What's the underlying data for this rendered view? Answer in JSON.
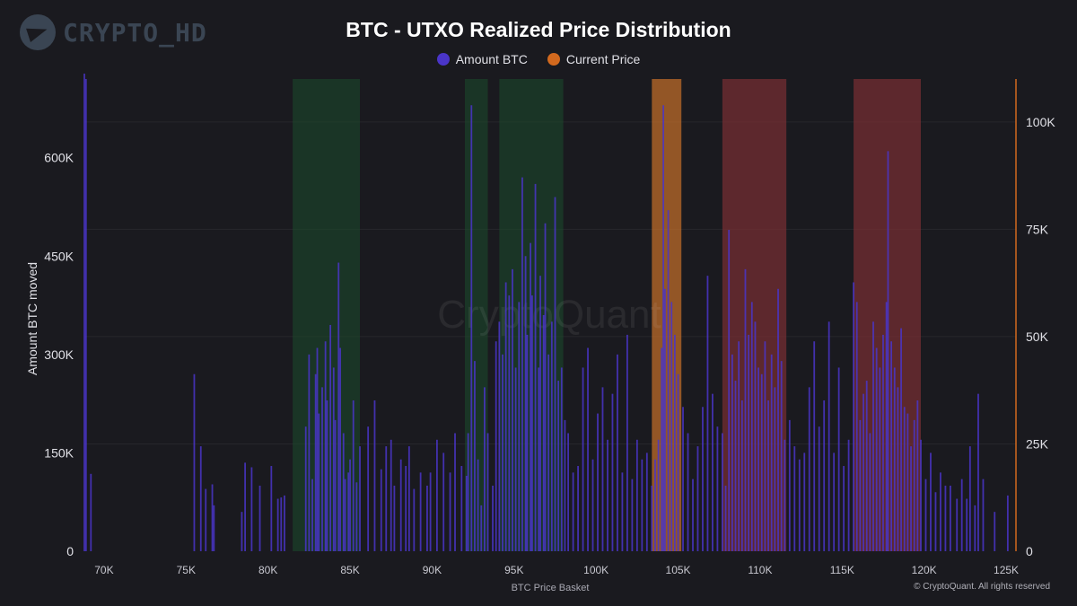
{
  "brand": {
    "name": "CRYPTO_HD",
    "icon": "telegram-icon"
  },
  "watermark": "CryptoQuant",
  "credit": "© CryptoQuant. All rights reserved",
  "colors": {
    "amount": "#4a35c8",
    "current_price": "#d2691e",
    "background": "#1a1a1f",
    "zone_green": "#1b4d2c",
    "zone_orange": "#c8702a",
    "zone_red": "#7a2f33"
  },
  "chart_data": {
    "type": "bar",
    "title": "BTC - UTXO Realized Price Distribution",
    "xlabel": "BTC Price Basket",
    "ylabel": "Amount BTC moved",
    "xlim": [
      68800,
      125600
    ],
    "ylim": [
      0,
      720000
    ],
    "y2lim": [
      0,
      110000
    ],
    "x_ticks": [
      70000,
      75000,
      80000,
      85000,
      90000,
      95000,
      100000,
      105000,
      110000,
      115000,
      120000,
      125000
    ],
    "x_tick_labels": [
      "70K",
      "75K",
      "80K",
      "85K",
      "90K",
      "95K",
      "100K",
      "105K",
      "110K",
      "115K",
      "120K",
      "125K"
    ],
    "y_ticks": [
      0,
      150000,
      300000,
      450000,
      600000
    ],
    "y_tick_labels": [
      "0",
      "150K",
      "300K",
      "450K",
      "600K"
    ],
    "y2_ticks": [
      0,
      25000,
      50000,
      75000,
      100000
    ],
    "y2_tick_labels": [
      "0",
      "25K",
      "50K",
      "75K",
      "100K"
    ],
    "legend": [
      {
        "name": "Amount BTC",
        "color": "#4a35c8"
      },
      {
        "name": "Current Price",
        "color": "#d2691e"
      }
    ],
    "legend_position": "top-center",
    "grid": true,
    "zones": [
      {
        "from": 81500,
        "to": 85600,
        "type": "green"
      },
      {
        "from": 92000,
        "to": 93400,
        "type": "green"
      },
      {
        "from": 94100,
        "to": 98000,
        "type": "green"
      },
      {
        "from": 103400,
        "to": 105200,
        "type": "orange"
      },
      {
        "from": 107700,
        "to": 111600,
        "type": "red"
      },
      {
        "from": 115700,
        "to": 119800,
        "type": "red"
      }
    ],
    "current_price": {
      "x": 125600,
      "value": 110000
    },
    "series": [
      {
        "name": "Amount BTC",
        "x": [
          68900,
          69200,
          75500,
          75900,
          76200,
          76600,
          76700,
          78400,
          78600,
          79000,
          79500,
          80200,
          80600,
          80800,
          81000,
          82300,
          82500,
          82700,
          82900,
          83000,
          83100,
          83300,
          83500,
          83600,
          83800,
          84000,
          84100,
          84300,
          84400,
          84600,
          84700,
          84900,
          85000,
          85200,
          85400,
          85600,
          86100,
          86500,
          86900,
          87200,
          87500,
          87700,
          88100,
          88400,
          88600,
          88900,
          89300,
          89700,
          89900,
          90300,
          90700,
          91100,
          91400,
          91800,
          92100,
          92200,
          92400,
          92600,
          92800,
          93000,
          93200,
          93400,
          93700,
          93900,
          94100,
          94300,
          94500,
          94700,
          94900,
          95100,
          95300,
          95500,
          95700,
          95800,
          96000,
          96100,
          96300,
          96500,
          96600,
          96800,
          96900,
          97100,
          97300,
          97500,
          97700,
          97900,
          98100,
          98300,
          98600,
          98900,
          99200,
          99500,
          99800,
          100100,
          100400,
          100700,
          101000,
          101300,
          101600,
          101900,
          102200,
          102500,
          102800,
          103100,
          103400,
          103600,
          103800,
          104000,
          104100,
          104200,
          104400,
          104600,
          104800,
          105000,
          105300,
          105600,
          105900,
          106200,
          106500,
          106800,
          107100,
          107400,
          107700,
          107900,
          108100,
          108300,
          108500,
          108700,
          108900,
          109100,
          109300,
          109500,
          109700,
          109900,
          110100,
          110300,
          110500,
          110700,
          110900,
          111100,
          111300,
          111500,
          111800,
          112100,
          112400,
          112700,
          113000,
          113300,
          113600,
          113900,
          114200,
          114500,
          114800,
          115100,
          115400,
          115700,
          115900,
          116100,
          116300,
          116500,
          116700,
          116900,
          117100,
          117300,
          117500,
          117700,
          117800,
          118000,
          118200,
          118400,
          118600,
          118800,
          119000,
          119200,
          119400,
          119600,
          119800,
          120100,
          120400,
          120700,
          121000,
          121300,
          121600,
          122000,
          122300,
          122600,
          122800,
          123100,
          123300,
          123600,
          124300,
          125100
        ],
        "values": [
          720000,
          118000,
          270000,
          160000,
          95000,
          102000,
          70000,
          60000,
          135000,
          128000,
          100000,
          130000,
          80000,
          82000,
          85000,
          190000,
          300000,
          110000,
          270000,
          310000,
          210000,
          250000,
          320000,
          230000,
          345000,
          280000,
          200000,
          440000,
          310000,
          180000,
          110000,
          120000,
          140000,
          230000,
          105000,
          160000,
          190000,
          230000,
          125000,
          160000,
          170000,
          100000,
          140000,
          130000,
          160000,
          95000,
          120000,
          100000,
          120000,
          170000,
          150000,
          120000,
          180000,
          130000,
          115000,
          180000,
          680000,
          290000,
          140000,
          70000,
          250000,
          180000,
          100000,
          320000,
          350000,
          300000,
          410000,
          390000,
          430000,
          280000,
          380000,
          570000,
          450000,
          330000,
          470000,
          390000,
          560000,
          280000,
          420000,
          360000,
          500000,
          300000,
          350000,
          540000,
          260000,
          280000,
          200000,
          180000,
          120000,
          130000,
          280000,
          310000,
          140000,
          210000,
          250000,
          170000,
          240000,
          300000,
          120000,
          330000,
          110000,
          170000,
          140000,
          150000,
          100000,
          140000,
          170000,
          310000,
          680000,
          400000,
          520000,
          380000,
          330000,
          270000,
          220000,
          180000,
          110000,
          160000,
          220000,
          420000,
          240000,
          190000,
          180000,
          100000,
          490000,
          300000,
          260000,
          320000,
          230000,
          430000,
          330000,
          380000,
          350000,
          280000,
          270000,
          320000,
          230000,
          300000,
          250000,
          400000,
          290000,
          170000,
          200000,
          160000,
          140000,
          150000,
          250000,
          320000,
          190000,
          230000,
          350000,
          150000,
          280000,
          130000,
          170000,
          410000,
          380000,
          200000,
          240000,
          260000,
          180000,
          350000,
          310000,
          280000,
          330000,
          380000,
          610000,
          320000,
          280000,
          250000,
          340000,
          220000,
          210000,
          160000,
          200000,
          230000,
          170000,
          110000,
          150000,
          90000,
          120000,
          100000,
          100000,
          80000,
          110000,
          80000,
          160000,
          70000,
          240000,
          110000,
          60000,
          85000
        ]
      }
    ]
  }
}
